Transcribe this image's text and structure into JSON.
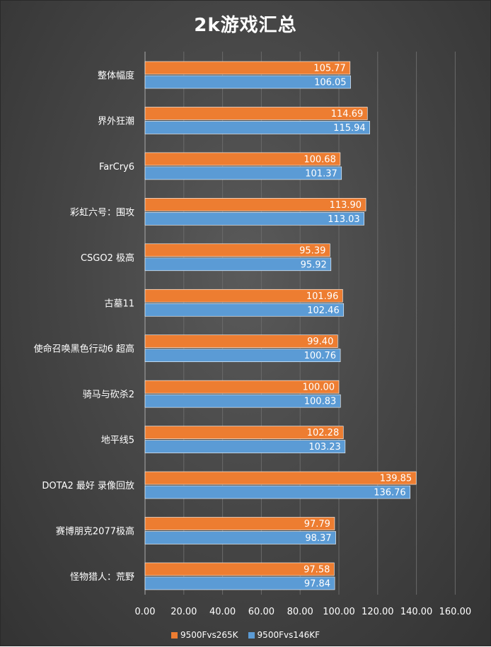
{
  "chart_data": {
    "type": "bar",
    "orientation": "horizontal",
    "title": "2k游戏汇总",
    "categories": [
      "整体幅度",
      "界外狂潮",
      "FarCry6",
      "彩虹六号：围攻",
      "CSGO2 极高",
      "古墓11",
      "使命召唤黑色行动6 超高",
      "骑马与砍杀2",
      "地平线5",
      "DOTA2 最好 录像回放",
      "赛博朋克2077极高",
      "怪物猎人：荒野"
    ],
    "series": [
      {
        "name": "9500Fvs265K",
        "color": "#ED7D31",
        "values": [
          105.77,
          114.69,
          100.68,
          113.9,
          95.39,
          101.96,
          99.4,
          100.0,
          102.28,
          139.85,
          97.79,
          97.58
        ],
        "labels": [
          "105.77",
          "114.69",
          "100.68",
          "113.90",
          "95.39",
          "101.96",
          "99.40",
          "100.00",
          "102.28",
          "139.85",
          "97.79",
          "97.58"
        ]
      },
      {
        "name": "9500Fvs146KF",
        "color": "#5B9BD5",
        "values": [
          106.05,
          115.94,
          101.37,
          113.03,
          95.92,
          102.46,
          100.76,
          100.83,
          103.23,
          136.76,
          98.37,
          97.84
        ],
        "labels": [
          "106.05",
          "115.94",
          "101.37",
          "113.03",
          "95.92",
          "102.46",
          "100.76",
          "100.83",
          "103.23",
          "136.76",
          "98.37",
          "97.84"
        ]
      }
    ],
    "xlim": [
      0,
      160
    ],
    "xticks": [
      0,
      20,
      40,
      60,
      80,
      100,
      120,
      140,
      160
    ],
    "xtick_labels": [
      "0.00",
      "20.00",
      "40.00",
      "60.00",
      "80.00",
      "100.00",
      "120.00",
      "140.00",
      "160.00"
    ],
    "grid": true,
    "legend_position": "bottom",
    "data_labels": "inside-end"
  },
  "colors": {
    "background": "#474747",
    "text": "#ffffff",
    "grid": "#6a6a6a",
    "axis": "#9a9a9a"
  }
}
